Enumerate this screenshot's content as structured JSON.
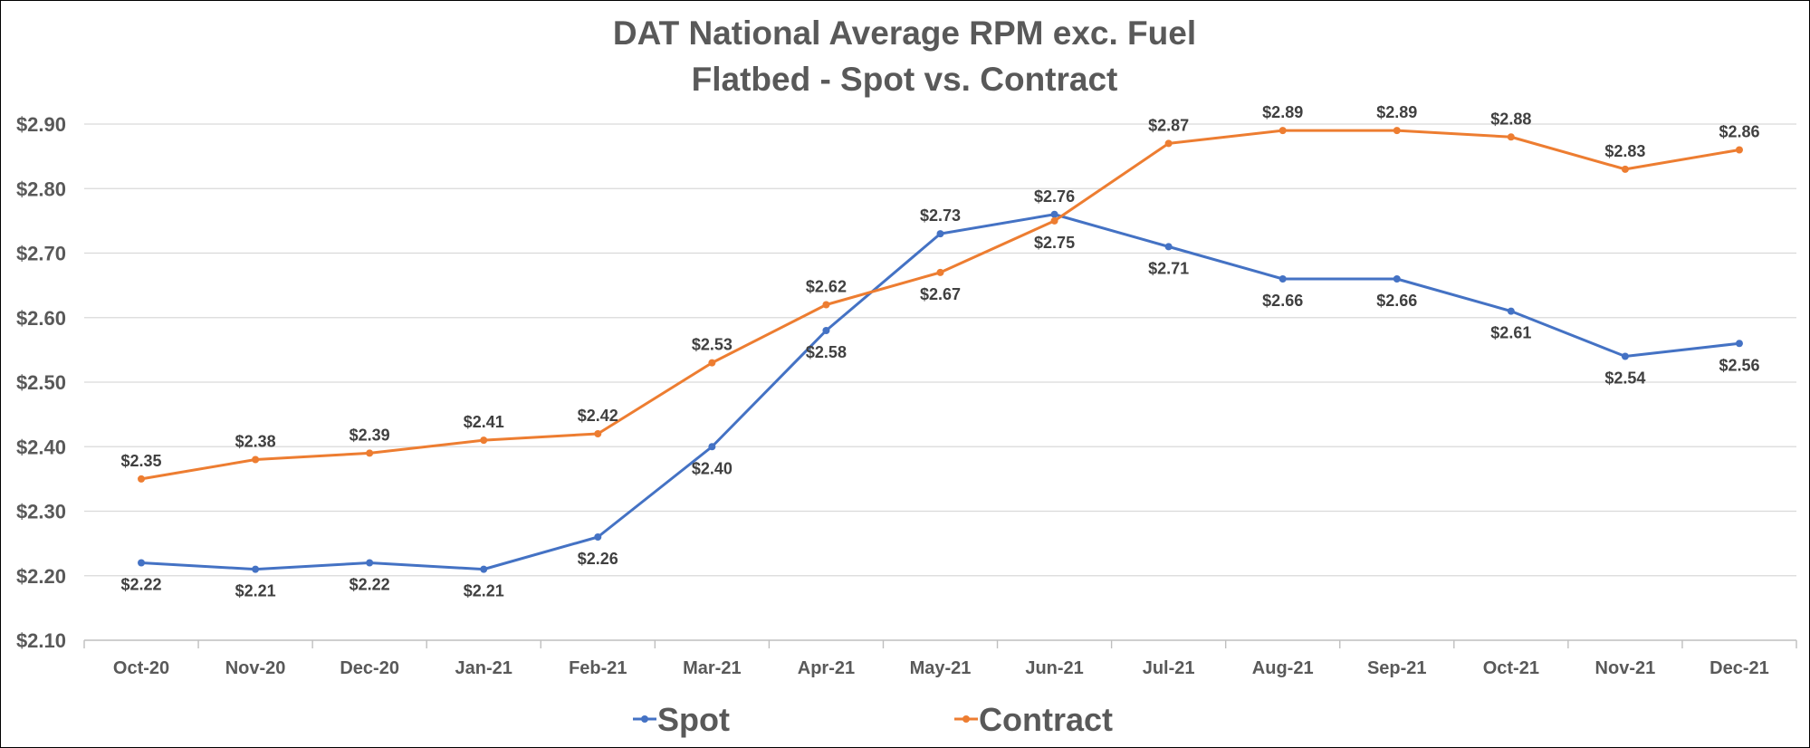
{
  "chart_data": {
    "type": "line",
    "title": "DAT National Average RPM exc. Fuel",
    "subtitle": "Flatbed - Spot vs. Contract",
    "xlabel": "",
    "ylabel": "",
    "categories": [
      "Oct-20",
      "Nov-20",
      "Dec-20",
      "Jan-21",
      "Feb-21",
      "Mar-21",
      "Apr-21",
      "May-21",
      "Jun-21",
      "Jul-21",
      "Aug-21",
      "Sep-21",
      "Oct-21",
      "Nov-21",
      "Dec-21"
    ],
    "ylim": [
      2.1,
      2.9
    ],
    "yticks": [
      2.1,
      2.2,
      2.3,
      2.4,
      2.5,
      2.6,
      2.7,
      2.8,
      2.9
    ],
    "ytick_labels": [
      "$2.10",
      "$2.20",
      "$2.30",
      "$2.40",
      "$2.50",
      "$2.60",
      "$2.70",
      "$2.80",
      "$2.90"
    ],
    "grid": true,
    "legend": "bottom",
    "series": [
      {
        "name": "Spot",
        "color": "#4472c4",
        "values": [
          2.22,
          2.21,
          2.22,
          2.21,
          2.26,
          2.4,
          2.58,
          2.73,
          2.76,
          2.71,
          2.66,
          2.66,
          2.61,
          2.54,
          2.56
        ],
        "labels": [
          "$2.22",
          "$2.21",
          "$2.22",
          "$2.21",
          "$2.26",
          "$2.40",
          "$2.58",
          "$2.73",
          "$2.76",
          "$2.71",
          "$2.66",
          "$2.66",
          "$2.61",
          "$2.54",
          "$2.56"
        ],
        "label_pos": [
          "below",
          "below",
          "below",
          "below",
          "below",
          "below",
          "below",
          "above",
          "above",
          "below",
          "below",
          "below",
          "below",
          "below",
          "below"
        ]
      },
      {
        "name": "Contract",
        "color": "#ed7d31",
        "values": [
          2.35,
          2.38,
          2.39,
          2.41,
          2.42,
          2.53,
          2.62,
          2.67,
          2.75,
          2.87,
          2.89,
          2.89,
          2.88,
          2.83,
          2.86
        ],
        "labels": [
          "$2.35",
          "$2.38",
          "$2.39",
          "$2.41",
          "$2.42",
          "$2.53",
          "$2.62",
          "$2.67",
          "$2.75",
          "$2.87",
          "$2.89",
          "$2.89",
          "$2.88",
          "$2.83",
          "$2.86"
        ],
        "label_pos": [
          "above",
          "above",
          "above",
          "above",
          "above",
          "above",
          "above",
          "below",
          "below",
          "above",
          "above",
          "above",
          "above",
          "above",
          "above"
        ]
      }
    ]
  }
}
